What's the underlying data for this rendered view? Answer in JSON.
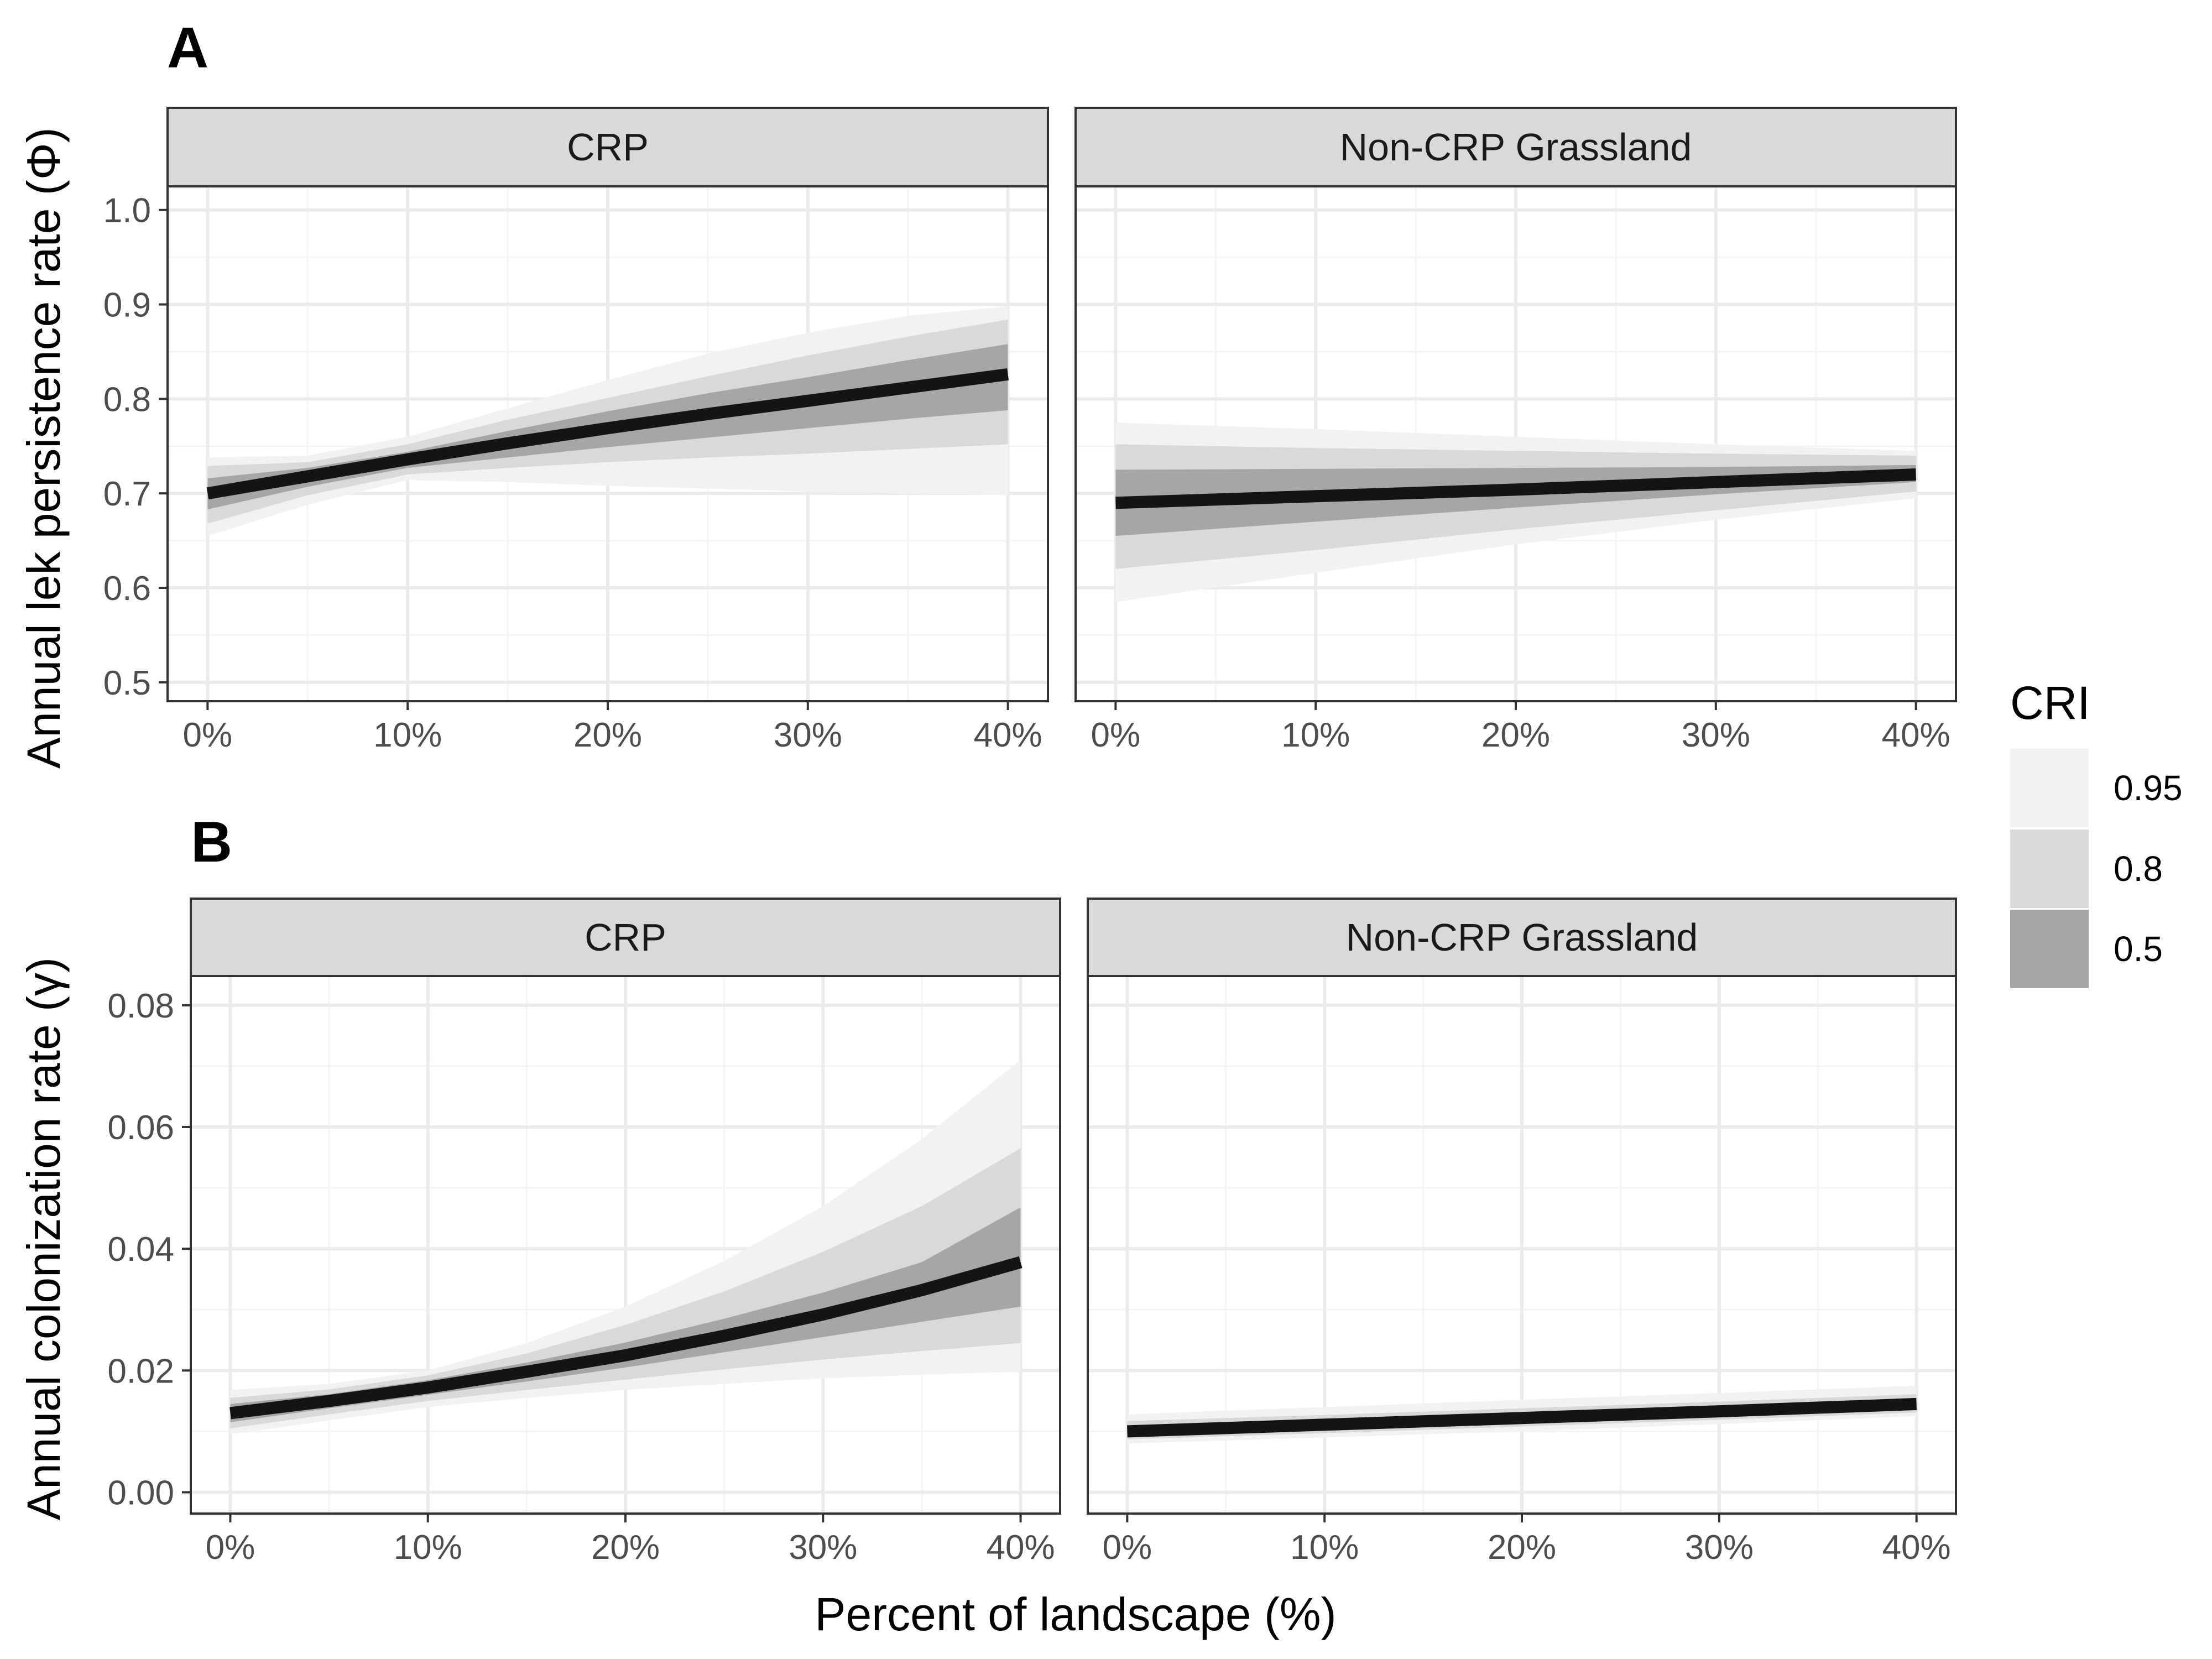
{
  "chart_data": [
    {
      "type": "line",
      "tag": "A",
      "ylabel": "Annual lek persistence rate (Φ)",
      "ylim": [
        0.48,
        1.025
      ],
      "yticks": [
        0.5,
        0.6,
        0.7,
        0.8,
        0.9,
        1.0
      ],
      "ytick_labels": [
        "0.5",
        "0.6",
        "0.7",
        "0.8",
        "0.9",
        "1.0"
      ],
      "xlim": [
        -2,
        42
      ],
      "xticks": [
        0,
        10,
        20,
        30,
        40
      ],
      "xtick_labels": [
        "0%",
        "10%",
        "20%",
        "30%",
        "40%"
      ],
      "grid": true,
      "facets": [
        {
          "strip": "CRP",
          "x": [
            0,
            5,
            10,
            15,
            20,
            25,
            30,
            35,
            40
          ],
          "median": [
            0.7,
            0.718,
            0.736,
            0.753,
            0.769,
            0.784,
            0.798,
            0.812,
            0.826
          ],
          "bands": {
            "0.95": {
              "lower": [
                0.655,
                0.688,
                0.714,
                0.712,
                0.708,
                0.705,
                0.702,
                0.7,
                0.698
              ],
              "upper": [
                0.738,
                0.74,
                0.76,
                0.79,
                0.82,
                0.848,
                0.87,
                0.888,
                0.898
              ]
            },
            "0.8": {
              "lower": [
                0.668,
                0.698,
                0.72,
                0.727,
                0.733,
                0.738,
                0.742,
                0.747,
                0.752
              ],
              "upper": [
                0.729,
                0.733,
                0.752,
                0.778,
                0.801,
                0.824,
                0.846,
                0.866,
                0.884
              ]
            },
            "0.5": {
              "lower": [
                0.683,
                0.707,
                0.727,
                0.738,
                0.749,
                0.759,
                0.769,
                0.779,
                0.788
              ],
              "upper": [
                0.716,
                0.727,
                0.744,
                0.766,
                0.787,
                0.806,
                0.823,
                0.841,
                0.858
              ]
            }
          }
        },
        {
          "strip": "Non-CRP Grassland",
          "x": [
            0,
            10,
            20,
            30,
            40
          ],
          "median": [
            0.69,
            0.697,
            0.704,
            0.712,
            0.72
          ],
          "bands": {
            "0.95": {
              "lower": [
                0.585,
                0.616,
                0.646,
                0.672,
                0.695
              ],
              "upper": [
                0.775,
                0.768,
                0.76,
                0.752,
                0.745
              ]
            },
            "0.8": {
              "lower": [
                0.62,
                0.64,
                0.662,
                0.682,
                0.702
              ],
              "upper": [
                0.752,
                0.748,
                0.745,
                0.742,
                0.74
              ]
            },
            "0.5": {
              "lower": [
                0.655,
                0.67,
                0.685,
                0.699,
                0.712
              ],
              "upper": [
                0.725,
                0.726,
                0.727,
                0.728,
                0.73
              ]
            }
          }
        }
      ]
    },
    {
      "type": "line",
      "tag": "B",
      "ylabel": "Annual colonization rate (γ)",
      "xlabel": "Percent of landscape (%)",
      "ylim": [
        -0.0035,
        0.0848
      ],
      "yticks": [
        0.0,
        0.02,
        0.04,
        0.06,
        0.08
      ],
      "ytick_labels": [
        "0.00",
        "0.02",
        "0.04",
        "0.06",
        "0.08"
      ],
      "xlim": [
        -2,
        42
      ],
      "xticks": [
        0,
        10,
        20,
        30,
        40
      ],
      "xtick_labels": [
        "0%",
        "10%",
        "20%",
        "30%",
        "40%"
      ],
      "grid": true,
      "facets": [
        {
          "strip": "CRP",
          "x": [
            0,
            5,
            10,
            15,
            20,
            25,
            30,
            35,
            40
          ],
          "median": [
            0.013,
            0.015,
            0.0172,
            0.0198,
            0.0225,
            0.0257,
            0.0292,
            0.0332,
            0.0378
          ],
          "bands": {
            "0.95": {
              "lower": [
                0.0095,
                0.0118,
                0.014,
                0.0155,
                0.0168,
                0.0178,
                0.0187,
                0.0193,
                0.0198
              ],
              "upper": [
                0.0168,
                0.0178,
                0.02,
                0.0245,
                0.0305,
                0.038,
                0.047,
                0.058,
                0.071
              ]
            },
            "0.8": {
              "lower": [
                0.0105,
                0.0128,
                0.015,
                0.0168,
                0.0185,
                0.0202,
                0.0218,
                0.0232,
                0.0245
              ],
              "upper": [
                0.0155,
                0.0169,
                0.0192,
                0.0228,
                0.0275,
                0.033,
                0.0395,
                0.047,
                0.0565
              ]
            },
            "0.5": {
              "lower": [
                0.0115,
                0.0138,
                0.016,
                0.0182,
                0.0205,
                0.023,
                0.0255,
                0.028,
                0.0305
              ],
              "upper": [
                0.0145,
                0.0161,
                0.0184,
                0.0213,
                0.0246,
                0.0285,
                0.0328,
                0.0378,
                0.0468
              ]
            }
          }
        },
        {
          "strip": "Non-CRP Grassland",
          "x": [
            0,
            10,
            20,
            30,
            40
          ],
          "median": [
            0.01,
            0.0111,
            0.0122,
            0.0133,
            0.0145
          ],
          "bands": {
            "0.95": {
              "lower": [
                0.008,
                0.009,
                0.01,
                0.0112,
                0.0125
              ],
              "upper": [
                0.0128,
                0.014,
                0.0152,
                0.0163,
                0.0175
              ]
            },
            "0.8": {
              "lower": [
                0.0087,
                0.0097,
                0.0108,
                0.0119,
                0.0131
              ],
              "upper": [
                0.0117,
                0.0127,
                0.0138,
                0.0149,
                0.0161
              ]
            },
            "0.5": {
              "lower": [
                0.0093,
                0.0104,
                0.0115,
                0.0126,
                0.0138
              ],
              "upper": [
                0.0108,
                0.0118,
                0.0129,
                0.014,
                0.0152
              ]
            }
          }
        }
      ]
    }
  ],
  "legend": {
    "title": "CRI",
    "placement": "right",
    "items": [
      {
        "label": "0.95",
        "level": "0.95",
        "color": "#f2f2f2"
      },
      {
        "label": "0.8",
        "level": "0.8",
        "color": "#d9d9d9"
      },
      {
        "label": "0.5",
        "level": "0.5",
        "color": "#a6a6a6"
      }
    ]
  },
  "colors": {
    "median_line": "#141414",
    "band_0.95": "#f2f2f2",
    "band_0.8": "#d9d9d9",
    "band_0.5": "#a6a6a6",
    "strip_fill": "#d9d9d9",
    "grid_major": "#ebebeb",
    "grid_minor": "#f4f4f4",
    "panel_border": "#333333"
  }
}
